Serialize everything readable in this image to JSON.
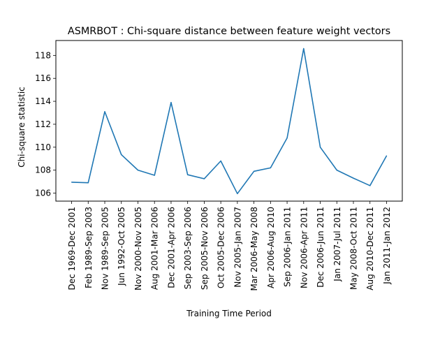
{
  "chart_data": {
    "type": "line",
    "title": "ASMRBOT : Chi-square distance between feature weight vectors",
    "xlabel": "Training Time Period",
    "ylabel": "Chi-square statistic",
    "categories": [
      "Dec 1969-Dec 2001",
      "Feb 1989-Sep 2003",
      "Nov 1989-Sep 2005",
      "Jun 1992-Oct 2005",
      "Nov 2000-Nov 2005",
      "Aug 2001-Mar 2006",
      "Dec 2001-Apr 2006",
      "Sep 2003-Sep 2006",
      "Sep 2005-Nov 2006",
      "Oct 2005-Dec 2006",
      "Nov 2005-Jan 2007",
      "Mar 2006-May 2008",
      "Apr 2006-Aug 2010",
      "Sep 2006-Jan 2011",
      "Nov 2006-Apr 2011",
      "Dec 2006-Jun 2011",
      "Jan 2007-Jul 2011",
      "May 2008-Oct 2011",
      "Aug 2010-Dec 2011",
      "Jan 2011-Jan 2012"
    ],
    "series": [
      {
        "values": [
          106.95,
          106.9,
          113.1,
          109.35,
          108.0,
          107.55,
          113.9,
          107.6,
          107.25,
          108.8,
          105.95,
          107.9,
          108.2,
          110.8,
          118.6,
          110.0,
          108.0,
          107.3,
          106.65,
          109.25
        ],
        "color": "#1f77b4"
      }
    ],
    "ylim": [
      105.3,
      119.3
    ],
    "yticks": [
      106,
      108,
      110,
      112,
      114,
      116,
      118
    ],
    "grid": false,
    "legend": "none"
  }
}
